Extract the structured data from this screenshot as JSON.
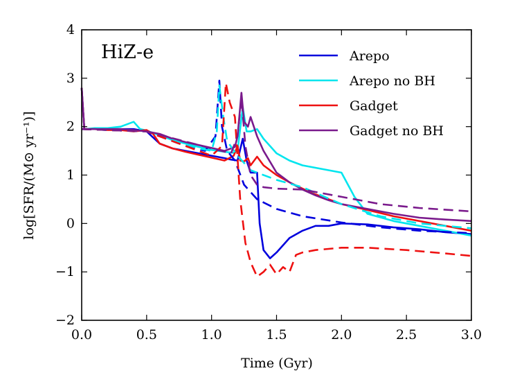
{
  "chart_data": {
    "type": "line",
    "title": "HiZ-e",
    "xlabel": "Time (Gyr)",
    "ylabel": "log[SFR/(M⊙ yr⁻¹)]",
    "xlim": [
      0.0,
      3.0
    ],
    "ylim": [
      -2,
      4
    ],
    "xticks": [
      0.0,
      0.5,
      1.0,
      1.5,
      2.0,
      2.5,
      3.0
    ],
    "xtick_labels": [
      "0.0",
      "0.5",
      "1.0",
      "1.5",
      "2.0",
      "2.5",
      "3.0"
    ],
    "yticks": [
      -2,
      -1,
      0,
      1,
      2,
      3,
      4
    ],
    "ytick_labels": [
      "−2",
      "−1",
      "0",
      "1",
      "2",
      "3",
      "4"
    ],
    "legend_position": "top-right",
    "grid": false,
    "series": [
      {
        "name": "Arepo",
        "color": "#0000dd",
        "style": "solid",
        "x": [
          0.0,
          0.02,
          0.1,
          0.2,
          0.3,
          0.4,
          0.5,
          0.6,
          0.7,
          0.8,
          0.9,
          1.0,
          1.1,
          1.15,
          1.2,
          1.24,
          1.27,
          1.3,
          1.35,
          1.37,
          1.4,
          1.45,
          1.5,
          1.6,
          1.7,
          1.8,
          1.9,
          2.0,
          2.2,
          2.4,
          2.6,
          2.8,
          3.0
        ],
        "y": [
          2.8,
          1.95,
          1.95,
          1.95,
          1.95,
          1.95,
          1.9,
          1.65,
          1.55,
          1.5,
          1.45,
          1.4,
          1.35,
          1.32,
          1.3,
          1.75,
          1.3,
          1.05,
          1.05,
          0.0,
          -0.55,
          -0.72,
          -0.6,
          -0.3,
          -0.15,
          -0.05,
          -0.05,
          0.0,
          -0.02,
          -0.08,
          -0.12,
          -0.18,
          -0.22
        ]
      },
      {
        "name": "Arepo no BH",
        "color": "#00e5ee",
        "style": "solid",
        "x": [
          0.0,
          0.02,
          0.1,
          0.2,
          0.3,
          0.4,
          0.45,
          0.5,
          0.6,
          0.7,
          0.8,
          0.9,
          1.0,
          1.1,
          1.17,
          1.2,
          1.24,
          1.27,
          1.3,
          1.35,
          1.4,
          1.5,
          1.6,
          1.7,
          1.8,
          1.9,
          2.0,
          2.1,
          2.2,
          2.4,
          2.6,
          2.8,
          3.0
        ],
        "y": [
          2.8,
          1.95,
          1.97,
          1.97,
          2.0,
          2.1,
          1.95,
          1.92,
          1.82,
          1.72,
          1.65,
          1.58,
          1.52,
          1.48,
          1.46,
          1.5,
          2.4,
          1.9,
          1.9,
          1.95,
          1.75,
          1.45,
          1.3,
          1.2,
          1.15,
          1.1,
          1.05,
          0.55,
          0.2,
          0.05,
          -0.05,
          -0.15,
          -0.25
        ]
      },
      {
        "name": "Gadget",
        "color": "#ee1111",
        "style": "solid",
        "x": [
          0.0,
          0.02,
          0.1,
          0.2,
          0.3,
          0.4,
          0.5,
          0.55,
          0.6,
          0.7,
          0.8,
          0.9,
          1.0,
          1.1,
          1.17,
          1.2,
          1.22,
          1.25,
          1.28,
          1.3,
          1.35,
          1.4,
          1.5,
          1.6,
          1.7,
          1.8,
          1.9,
          2.0,
          2.2,
          2.4,
          2.6,
          2.8,
          3.0
        ],
        "y": [
          2.8,
          1.95,
          1.95,
          1.93,
          1.93,
          1.9,
          1.93,
          1.85,
          1.65,
          1.55,
          1.48,
          1.42,
          1.36,
          1.3,
          1.4,
          1.6,
          1.3,
          1.28,
          1.35,
          1.2,
          1.38,
          1.2,
          1.0,
          0.85,
          0.72,
          0.6,
          0.5,
          0.4,
          0.28,
          0.15,
          0.05,
          -0.05,
          -0.15
        ]
      },
      {
        "name": "Gadget no BH",
        "color": "#7a1a8c",
        "style": "solid",
        "x": [
          0.0,
          0.02,
          0.1,
          0.2,
          0.3,
          0.4,
          0.5,
          0.6,
          0.7,
          0.8,
          0.9,
          1.0,
          1.1,
          1.18,
          1.2,
          1.23,
          1.25,
          1.28,
          1.3,
          1.35,
          1.4,
          1.5,
          1.6,
          1.7,
          1.8,
          1.9,
          2.0,
          2.2,
          2.4,
          2.6,
          2.8,
          3.0
        ],
        "y": [
          2.8,
          1.95,
          1.95,
          1.95,
          1.95,
          1.93,
          1.9,
          1.85,
          1.75,
          1.68,
          1.62,
          1.56,
          1.5,
          1.58,
          1.8,
          2.7,
          2.1,
          2.0,
          2.2,
          1.8,
          1.5,
          1.05,
          0.85,
          0.7,
          0.58,
          0.48,
          0.4,
          0.3,
          0.2,
          0.12,
          0.08,
          0.05
        ]
      },
      {
        "name": "Arepo (dashed)",
        "color": "#0000dd",
        "style": "dashed",
        "in_legend": false,
        "x": [
          0.0,
          0.5,
          0.8,
          0.95,
          1.03,
          1.06,
          1.08,
          1.12,
          1.18,
          1.25,
          1.35,
          1.5,
          1.7,
          2.0,
          2.3,
          2.6,
          3.0
        ],
        "y": [
          1.95,
          1.9,
          1.6,
          1.5,
          1.8,
          2.95,
          2.0,
          1.5,
          1.3,
          0.8,
          0.5,
          0.3,
          0.15,
          0.02,
          -0.08,
          -0.15,
          -0.2
        ]
      },
      {
        "name": "Arepo no BH (dashed)",
        "color": "#00e5ee",
        "style": "dashed",
        "in_legend": false,
        "x": [
          0.0,
          0.5,
          0.9,
          1.0,
          1.04,
          1.06,
          1.09,
          1.12,
          1.2,
          1.3,
          1.5,
          1.7,
          2.0,
          2.3,
          2.6,
          3.0
        ],
        "y": [
          1.95,
          1.9,
          1.55,
          1.5,
          1.9,
          2.85,
          2.2,
          1.7,
          1.4,
          1.1,
          0.9,
          0.75,
          0.4,
          0.15,
          0.0,
          -0.1
        ]
      },
      {
        "name": "Gadget (dashed)",
        "color": "#ee1111",
        "style": "dashed",
        "in_legend": false,
        "x": [
          0.0,
          0.5,
          1.0,
          1.08,
          1.11,
          1.14,
          1.18,
          1.22,
          1.26,
          1.3,
          1.35,
          1.4,
          1.45,
          1.5,
          1.55,
          1.6,
          1.65,
          1.7,
          1.8,
          2.0,
          2.2,
          2.5,
          2.8,
          3.0
        ],
        "y": [
          1.95,
          1.9,
          1.4,
          1.6,
          2.9,
          2.5,
          2.2,
          0.5,
          -0.4,
          -0.8,
          -1.1,
          -1.0,
          -0.85,
          -1.05,
          -0.9,
          -1.0,
          -0.65,
          -0.6,
          -0.55,
          -0.5,
          -0.5,
          -0.55,
          -0.62,
          -0.67
        ]
      },
      {
        "name": "Gadget no BH (dashed)",
        "color": "#7a1a8c",
        "style": "dashed",
        "in_legend": false,
        "x": [
          0.0,
          0.5,
          1.0,
          1.15,
          1.2,
          1.23,
          1.26,
          1.3,
          1.35,
          1.4,
          1.5,
          1.7,
          2.0,
          2.3,
          2.6,
          3.0
        ],
        "y": [
          1.95,
          1.9,
          1.55,
          1.45,
          1.8,
          2.6,
          1.6,
          1.0,
          0.8,
          0.75,
          0.72,
          0.7,
          0.55,
          0.4,
          0.32,
          0.25
        ]
      }
    ]
  }
}
